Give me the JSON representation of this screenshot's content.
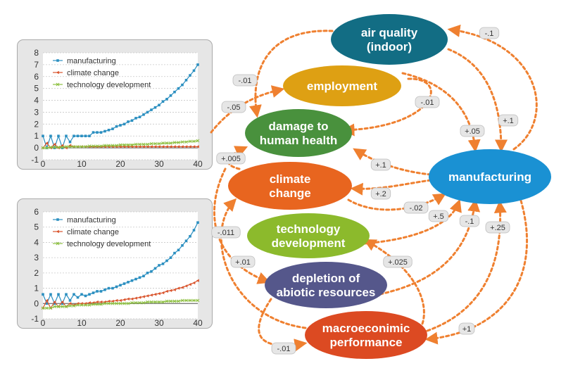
{
  "charts": [
    {
      "id": "chart1",
      "chart_data": {
        "type": "line",
        "x": [
          0,
          1,
          2,
          3,
          4,
          5,
          6,
          7,
          8,
          9,
          10,
          11,
          12,
          13,
          14,
          15,
          16,
          17,
          18,
          19,
          20,
          21,
          22,
          23,
          24,
          25,
          26,
          27,
          28,
          29,
          30,
          31,
          32,
          33,
          34,
          35,
          36,
          37,
          38,
          39,
          40
        ],
        "xticks": [
          0,
          10,
          20,
          30,
          40
        ],
        "yticks": [
          -1,
          0,
          1,
          2,
          3,
          4,
          5,
          6,
          7,
          8
        ],
        "xlim": [
          0,
          40
        ],
        "ylim": [
          -1,
          8
        ],
        "legend_position": "top-left",
        "series": [
          {
            "name": "manufacturing",
            "color": "#2b8fc0",
            "marker": "square",
            "values": [
              1,
              0,
              1,
              0,
              1,
              0,
              1,
              0.5,
              1,
              1,
              1,
              1,
              1,
              1.3,
              1.3,
              1.3,
              1.4,
              1.5,
              1.6,
              1.8,
              1.9,
              2,
              2.2,
              2.3,
              2.5,
              2.6,
              2.8,
              3,
              3.2,
              3.4,
              3.6,
              3.9,
              4.1,
              4.4,
              4.7,
              5,
              5.3,
              5.7,
              6.1,
              6.5,
              7
            ]
          },
          {
            "name": "climate change",
            "color": "#d9532b",
            "marker": "triangle",
            "values": [
              0,
              0.4,
              0,
              0.3,
              0,
              0.2,
              0,
              0.2,
              0.1,
              0.1,
              0.1,
              0.1,
              0.1,
              0.1,
              0.1,
              0.1,
              0.1,
              0.1,
              0.1,
              0.1,
              0.1,
              0.1,
              0.1,
              0.1,
              0.1,
              0.1,
              0.1,
              0.1,
              0.1,
              0.1,
              0.1,
              0.1,
              0.1,
              0.1,
              0.1,
              0.1,
              0.1,
              0.1,
              0.1,
              0.1,
              0.1
            ]
          },
          {
            "name": "technology development",
            "color": "#8cbf3f",
            "marker": "cross",
            "values": [
              0,
              0,
              0.05,
              0.05,
              0.05,
              0.05,
              0.1,
              0.1,
              0.1,
              0.1,
              0.1,
              0.1,
              0.15,
              0.15,
              0.15,
              0.15,
              0.2,
              0.2,
              0.2,
              0.2,
              0.25,
              0.25,
              0.25,
              0.25,
              0.3,
              0.3,
              0.3,
              0.3,
              0.35,
              0.35,
              0.35,
              0.4,
              0.4,
              0.4,
              0.45,
              0.45,
              0.5,
              0.5,
              0.55,
              0.55,
              0.6
            ]
          }
        ]
      }
    },
    {
      "id": "chart2",
      "chart_data": {
        "type": "line",
        "x": [
          0,
          1,
          2,
          3,
          4,
          5,
          6,
          7,
          8,
          9,
          10,
          11,
          12,
          13,
          14,
          15,
          16,
          17,
          18,
          19,
          20,
          21,
          22,
          23,
          24,
          25,
          26,
          27,
          28,
          29,
          30,
          31,
          32,
          33,
          34,
          35,
          36,
          37,
          38,
          39,
          40
        ],
        "xticks": [
          0,
          10,
          20,
          30,
          40
        ],
        "yticks": [
          -1,
          0,
          1,
          2,
          3,
          4,
          5,
          6
        ],
        "xlim": [
          0,
          40
        ],
        "ylim": [
          -1,
          6
        ],
        "legend_position": "top-left",
        "series": [
          {
            "name": "manufacturing",
            "color": "#2b8fc0",
            "marker": "square",
            "values": [
              0.6,
              0,
              0.6,
              0,
              0.6,
              0,
              0.6,
              0.2,
              0.6,
              0.4,
              0.6,
              0.5,
              0.6,
              0.7,
              0.8,
              0.8,
              0.9,
              1,
              1,
              1.1,
              1.2,
              1.3,
              1.4,
              1.5,
              1.6,
              1.7,
              1.8,
              2,
              2.1,
              2.3,
              2.5,
              2.6,
              2.8,
              3,
              3.3,
              3.5,
              3.8,
              4.1,
              4.4,
              4.8,
              5.3
            ]
          },
          {
            "name": "climate change",
            "color": "#d9532b",
            "marker": "triangle",
            "values": [
              -0.3,
              0.2,
              -0.3,
              0.1,
              -0.2,
              0.1,
              -0.2,
              0,
              -0.1,
              0,
              0,
              0,
              0.05,
              0.05,
              0.1,
              0.1,
              0.1,
              0.15,
              0.15,
              0.2,
              0.2,
              0.25,
              0.3,
              0.3,
              0.35,
              0.4,
              0.45,
              0.5,
              0.55,
              0.6,
              0.65,
              0.7,
              0.8,
              0.85,
              0.9,
              1,
              1.05,
              1.15,
              1.25,
              1.35,
              1.5
            ]
          },
          {
            "name": "technology development",
            "color": "#8cbf3f",
            "marker": "cross",
            "values": [
              -0.3,
              -0.3,
              -0.3,
              -0.2,
              -0.2,
              -0.2,
              -0.2,
              -0.15,
              -0.15,
              -0.1,
              -0.1,
              -0.1,
              -0.1,
              -0.05,
              -0.05,
              -0.05,
              0,
              0,
              0,
              0,
              0,
              0,
              0,
              0.05,
              0.05,
              0.05,
              0.05,
              0.1,
              0.1,
              0.1,
              0.1,
              0.1,
              0.15,
              0.15,
              0.15,
              0.15,
              0.2,
              0.2,
              0.2,
              0.2,
              0.2
            ]
          }
        ]
      }
    }
  ],
  "diagram": {
    "edge_color": "#ef8030",
    "nodes": [
      {
        "id": "air_quality",
        "label": [
          "air quality",
          "(indoor)"
        ],
        "color": "#126d84"
      },
      {
        "id": "employment",
        "label": [
          "employment"
        ],
        "color": "#dea013"
      },
      {
        "id": "damage",
        "label": [
          "damage to",
          "human health"
        ],
        "color": "#49913d"
      },
      {
        "id": "climate",
        "label": [
          "climate",
          "change"
        ],
        "color": "#e8651f"
      },
      {
        "id": "technology",
        "label": [
          "technology",
          "development"
        ],
        "color": "#8cba2c"
      },
      {
        "id": "depletion",
        "label": [
          "depletion of",
          "abiotic resources"
        ],
        "color": "#55578b"
      },
      {
        "id": "macro",
        "label": [
          "macroeconimic",
          "performance"
        ],
        "color": "#dc4a22"
      },
      {
        "id": "manufacturing",
        "label": [
          "manufacturing"
        ],
        "color": "#1a91d3"
      }
    ],
    "edges": [
      {
        "from": "manufacturing",
        "to": "air_quality",
        "label": "-.1"
      },
      {
        "from": "air_quality",
        "to": "manufacturing",
        "label": "+.1"
      },
      {
        "from": "air_quality",
        "to": "damage",
        "label": "-.01"
      },
      {
        "from": "technology",
        "to": "employment",
        "label": "-.05"
      },
      {
        "from": "employment",
        "to": "damage",
        "label": "-.01"
      },
      {
        "from": "employment",
        "to": "manufacturing",
        "label": "+.05"
      },
      {
        "from": "manufacturing",
        "to": "damage",
        "label": "+.1"
      },
      {
        "from": "manufacturing",
        "to": "climate",
        "label": "+.2"
      },
      {
        "from": "climate",
        "to": "damage",
        "label": "+.005"
      },
      {
        "from": "climate",
        "to": "manufacturing",
        "label": "-.02"
      },
      {
        "from": "technology",
        "to": "manufacturing",
        "label": "+.5"
      },
      {
        "from": "macro",
        "to": "climate",
        "label": "-.011"
      },
      {
        "from": "technology",
        "to": "depletion",
        "label": "+.01"
      },
      {
        "from": "depletion",
        "to": "manufacturing",
        "label": "-.1"
      },
      {
        "from": "macro",
        "to": "technology",
        "label": "+.025"
      },
      {
        "from": "macro",
        "to": "manufacturing",
        "label": "+.25"
      },
      {
        "from": "manufacturing",
        "to": "macro",
        "label": "+1"
      },
      {
        "from": "depletion",
        "to": "macro",
        "label": "-.01"
      }
    ]
  }
}
